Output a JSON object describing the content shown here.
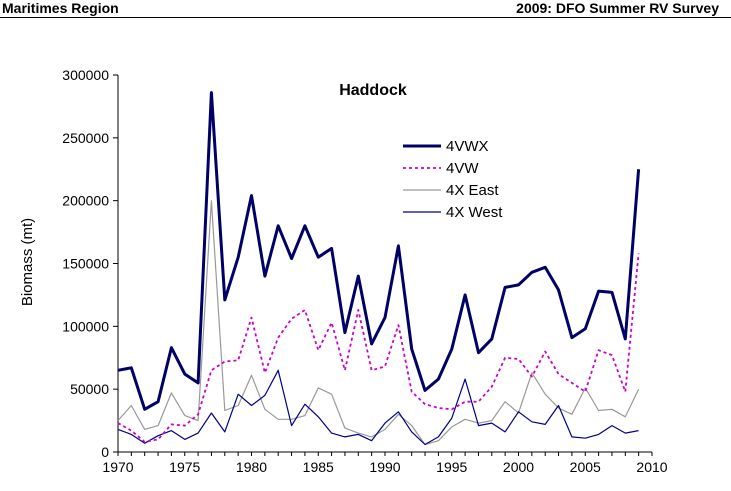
{
  "header": {
    "left": "Maritimes Region",
    "right": "2009: DFO Summer RV Survey"
  },
  "chart_data": {
    "type": "line",
    "title": "Haddock",
    "xlabel": "",
    "ylabel": "Biomass (mt)",
    "xlim": [
      1970,
      2010
    ],
    "ylim": [
      0,
      300000
    ],
    "xticks": [
      1970,
      1975,
      1980,
      1985,
      1990,
      1995,
      2000,
      2005,
      2010
    ],
    "yticks": [
      0,
      50000,
      100000,
      150000,
      200000,
      250000,
      300000
    ],
    "grid": false,
    "legend_position": "top-right",
    "x": [
      1970,
      1971,
      1972,
      1973,
      1974,
      1975,
      1976,
      1977,
      1978,
      1979,
      1980,
      1981,
      1982,
      1983,
      1984,
      1985,
      1986,
      1987,
      1988,
      1989,
      1990,
      1991,
      1992,
      1993,
      1994,
      1995,
      1996,
      1997,
      1998,
      1999,
      2000,
      2001,
      2002,
      2003,
      2004,
      2005,
      2006,
      2007,
      2008,
      2009
    ],
    "series": [
      {
        "name": "4VWX",
        "color": "#000066",
        "style": "solid-thick",
        "values": [
          65000,
          67000,
          34000,
          40000,
          83000,
          62000,
          55000,
          286000,
          121000,
          155000,
          204000,
          140000,
          180000,
          154000,
          180000,
          155000,
          162000,
          95000,
          140000,
          86000,
          107000,
          164000,
          82000,
          49000,
          58000,
          82000,
          125000,
          79000,
          90000,
          131000,
          133000,
          143000,
          147000,
          129000,
          91000,
          98000,
          128000,
          127000,
          90000,
          225000
        ]
      },
      {
        "name": "4VW",
        "color": "#cc00cc",
        "style": "dotted",
        "values": [
          23000,
          17000,
          8000,
          10000,
          22000,
          21000,
          30000,
          65000,
          72000,
          73000,
          107000,
          63000,
          91000,
          106000,
          113000,
          81000,
          103000,
          65000,
          113000,
          65000,
          68000,
          101000,
          48000,
          38000,
          35000,
          34000,
          40000,
          40000,
          52000,
          75000,
          74000,
          60000,
          80000,
          62000,
          55000,
          48000,
          81000,
          77000,
          48000,
          158000
        ]
      },
      {
        "name": "4X East",
        "color": "#999999",
        "style": "solid-thin",
        "values": [
          25000,
          37000,
          18000,
          21000,
          47000,
          29000,
          25000,
          200000,
          33000,
          37000,
          61000,
          34000,
          26000,
          26000,
          29000,
          51000,
          46000,
          19000,
          15000,
          12000,
          18000,
          30000,
          21000,
          6000,
          9000,
          20000,
          26000,
          23000,
          25000,
          40000,
          31000,
          63000,
          46000,
          35000,
          30000,
          51000,
          33000,
          34000,
          28000,
          50000
        ]
      },
      {
        "name": "4X West",
        "color": "#00008b",
        "style": "solid-thin",
        "values": [
          18000,
          14000,
          7000,
          13000,
          17000,
          10000,
          15000,
          31000,
          16000,
          46000,
          37000,
          45000,
          65000,
          21000,
          38000,
          28000,
          15000,
          12000,
          14000,
          9000,
          23000,
          32000,
          16000,
          6000,
          12000,
          27000,
          58000,
          21000,
          23000,
          16000,
          32000,
          24000,
          22000,
          37000,
          12000,
          11000,
          14000,
          21000,
          15000,
          17000
        ]
      }
    ]
  }
}
